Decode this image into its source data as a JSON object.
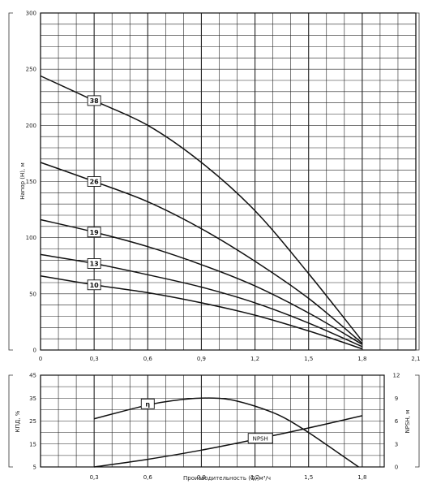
{
  "chart_data": [
    {
      "type": "line",
      "title": "",
      "ylabel": "Напор (Н), м",
      "xlabel": "",
      "xlim": [
        0,
        2.1
      ],
      "ylim": [
        0,
        300
      ],
      "x_ticks": [
        "0",
        "0,3",
        "0,6",
        "0,9",
        "1,2",
        "1,5",
        "1,8",
        "2,1"
      ],
      "y_ticks": [
        "0",
        "50",
        "100",
        "150",
        "200",
        "250",
        "300"
      ],
      "grid": true,
      "series": [
        {
          "name": "38",
          "points": [
            [
              0,
              244
            ],
            [
              0.3,
              222
            ],
            [
              0.6,
              200
            ],
            [
              0.9,
              167
            ],
            [
              1.2,
              124
            ],
            [
              1.5,
              68
            ],
            [
              1.8,
              8
            ]
          ]
        },
        {
          "name": "26",
          "points": [
            [
              0,
              167
            ],
            [
              0.3,
              150
            ],
            [
              0.6,
              132
            ],
            [
              0.9,
              108
            ],
            [
              1.2,
              79
            ],
            [
              1.5,
              46
            ],
            [
              1.8,
              6
            ]
          ]
        },
        {
          "name": "19",
          "points": [
            [
              0,
              116
            ],
            [
              0.3,
              105
            ],
            [
              0.6,
              92
            ],
            [
              0.9,
              76
            ],
            [
              1.2,
              57
            ],
            [
              1.5,
              33
            ],
            [
              1.8,
              5
            ]
          ]
        },
        {
          "name": "13",
          "points": [
            [
              0,
              85
            ],
            [
              0.3,
              77
            ],
            [
              0.6,
              67
            ],
            [
              0.9,
              56
            ],
            [
              1.2,
              42
            ],
            [
              1.5,
              24
            ],
            [
              1.8,
              3
            ]
          ]
        },
        {
          "name": "10",
          "points": [
            [
              0,
              66
            ],
            [
              0.3,
              58
            ],
            [
              0.6,
              51
            ],
            [
              0.9,
              42
            ],
            [
              1.2,
              31
            ],
            [
              1.5,
              17
            ],
            [
              1.8,
              1
            ]
          ]
        }
      ]
    },
    {
      "type": "line",
      "title": "",
      "xlabel": "Производительность (Q),м³/ч",
      "ylabel": "КПД, %",
      "ylabel_right": "NPSH, м",
      "xlim": [
        0,
        2.1
      ],
      "ylim": [
        5,
        45
      ],
      "ylim_right": [
        0,
        12
      ],
      "x_ticks": [
        "0,3",
        "0,6",
        "0,9",
        "1,2",
        "1,5",
        "1,8"
      ],
      "y_ticks": [
        "5",
        "15",
        "25",
        "35",
        "45"
      ],
      "y_ticks_right": [
        "0",
        "3",
        "6",
        "9",
        "12"
      ],
      "grid": true,
      "series": [
        {
          "name": "η",
          "axis": "left",
          "points": [
            [
              0.3,
              26
            ],
            [
              0.6,
              32
            ],
            [
              0.75,
              34
            ],
            [
              0.9,
              35
            ],
            [
              1.05,
              34.5
            ],
            [
              1.2,
              31.5
            ],
            [
              1.35,
              27
            ],
            [
              1.5,
              20
            ],
            [
              1.65,
              12
            ],
            [
              1.78,
              5
            ]
          ]
        },
        {
          "name": "NPSH",
          "axis": "right",
          "points": [
            [
              0.3,
              0
            ],
            [
              0.6,
              1
            ],
            [
              0.9,
              2.2
            ],
            [
              1.2,
              3.6
            ],
            [
              1.5,
              5.1
            ],
            [
              1.8,
              6.7
            ]
          ]
        }
      ]
    }
  ]
}
